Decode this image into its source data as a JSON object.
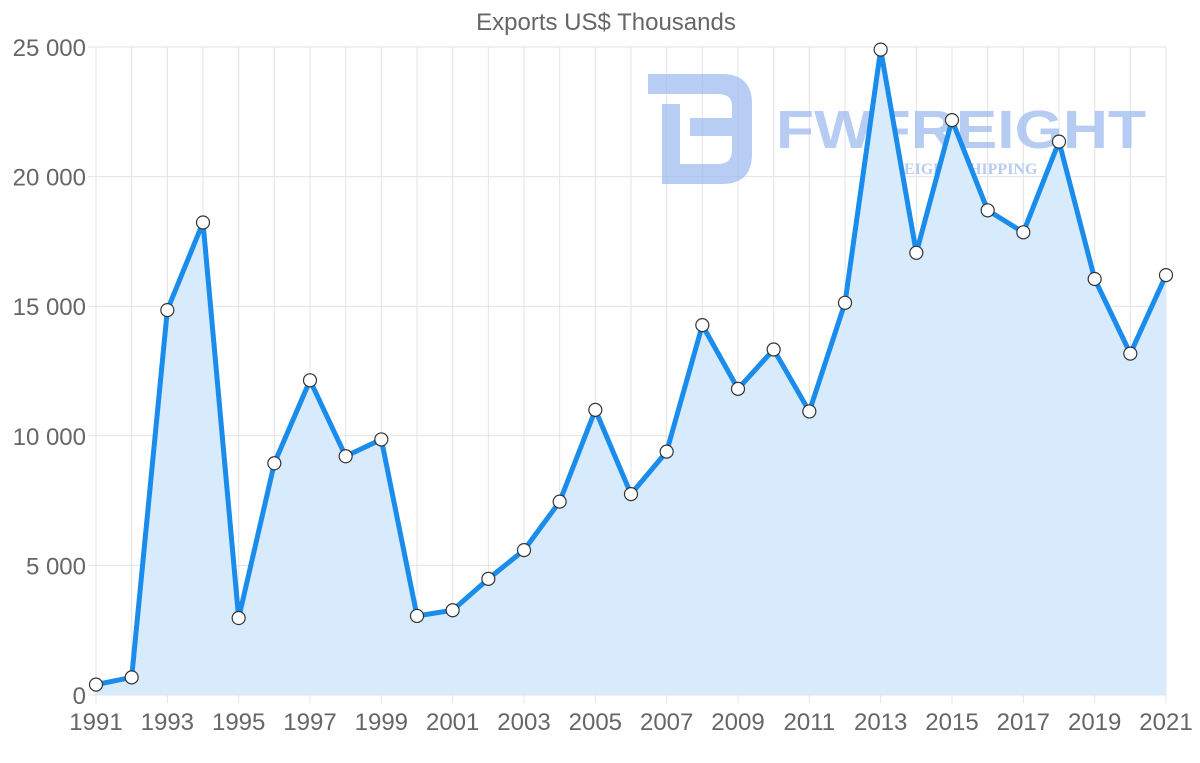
{
  "colors": {
    "line": "#1a8cec",
    "area": "#d8ebfc",
    "watermark": "#9fbcf0"
  },
  "watermark": {
    "brand": "FWFREIGHT",
    "tagline": "FREIGHT SHIPPING"
  },
  "chart_data": {
    "type": "area",
    "title": "Exports US$ Thousands",
    "xlabel": "",
    "ylabel": "",
    "x": [
      1991,
      1992,
      1993,
      1994,
      1995,
      1996,
      1997,
      1998,
      1999,
      2000,
      2001,
      2002,
      2003,
      2004,
      2005,
      2006,
      2007,
      2008,
      2009,
      2010,
      2011,
      2012,
      2013,
      2014,
      2015,
      2016,
      2017,
      2018,
      2019,
      2020,
      2021
    ],
    "values": [
      400,
      680,
      14850,
      18230,
      2970,
      8940,
      12140,
      9210,
      9860,
      3050,
      3270,
      4480,
      5590,
      7460,
      11000,
      7750,
      9390,
      14270,
      11810,
      13330,
      10940,
      15130,
      24900,
      17060,
      22180,
      18700,
      17850,
      21350,
      16050,
      13170,
      16200
    ],
    "xlim": [
      1991,
      2021
    ],
    "ylim": [
      0,
      25000
    ],
    "x_ticks": [
      "1991",
      "1993",
      "1995",
      "1997",
      "1999",
      "2001",
      "2003",
      "2005",
      "2007",
      "2009",
      "2011",
      "2013",
      "2015",
      "2017",
      "2019",
      "2021"
    ],
    "y_ticks": [
      "0",
      "5 000",
      "10 000",
      "15 000",
      "20 000",
      "25 000"
    ],
    "y_tick_values": [
      0,
      5000,
      10000,
      15000,
      20000,
      25000
    ],
    "grid": true,
    "legend": "none"
  }
}
